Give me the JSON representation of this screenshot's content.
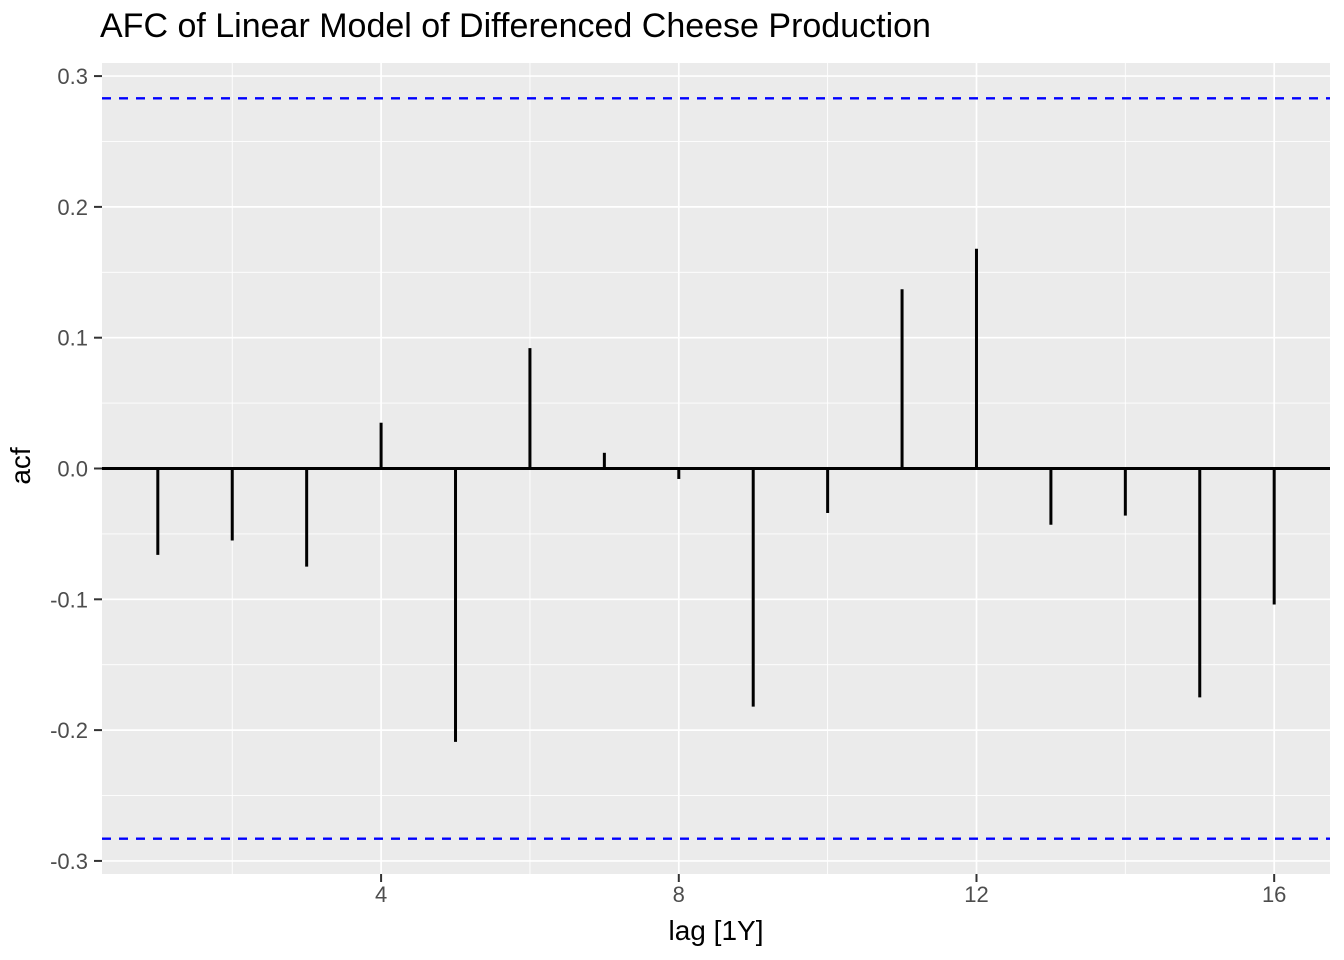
{
  "chart_data": {
    "type": "bar",
    "variant": "acf-stem-plot",
    "title": "AFC of Linear Model of Differenced Cheese Production",
    "xlabel": "lag [1Y]",
    "ylabel": "acf",
    "x": [
      1,
      2,
      3,
      4,
      5,
      6,
      7,
      8,
      9,
      10,
      11,
      12,
      13,
      14,
      15,
      16
    ],
    "values": [
      -0.066,
      -0.055,
      -0.075,
      0.035,
      -0.209,
      0.092,
      0.012,
      -0.008,
      -0.182,
      -0.034,
      0.137,
      0.168,
      -0.043,
      -0.036,
      -0.175,
      -0.104
    ],
    "confidence_bounds": {
      "upper": 0.283,
      "lower": -0.283,
      "line_style": "dashed",
      "color": "#0000FF"
    },
    "xlim": [
      0.25,
      16.75
    ],
    "ylim": [
      -0.31,
      0.31
    ],
    "x_ticks": [
      {
        "value": 4,
        "label": "4"
      },
      {
        "value": 8,
        "label": "8"
      },
      {
        "value": 12,
        "label": "12"
      },
      {
        "value": 16,
        "label": "16"
      }
    ],
    "y_ticks": [
      {
        "value": 0.3,
        "label": "0.3"
      },
      {
        "value": 0.2,
        "label": "0.2"
      },
      {
        "value": 0.1,
        "label": "0.1"
      },
      {
        "value": 0.0,
        "label": "0.0"
      },
      {
        "value": -0.1,
        "label": "-0.1"
      },
      {
        "value": -0.2,
        "label": "-0.2"
      },
      {
        "value": -0.3,
        "label": "-0.3"
      }
    ],
    "x_minor_gridlines": [
      2,
      6,
      10,
      14
    ],
    "y_minor_gridlines": [
      0.25,
      0.15,
      0.05,
      -0.05,
      -0.15,
      -0.25
    ],
    "grid": "on",
    "legend": "none",
    "colors": {
      "bar": "#000000",
      "zero_line": "#000000",
      "confidence": "#0000FF",
      "panel_background": "#EBEBEB",
      "gridline": "#FFFFFF",
      "tick_label": "#4D4D4D",
      "axis_tick": "#333333",
      "text": "#000000"
    }
  }
}
